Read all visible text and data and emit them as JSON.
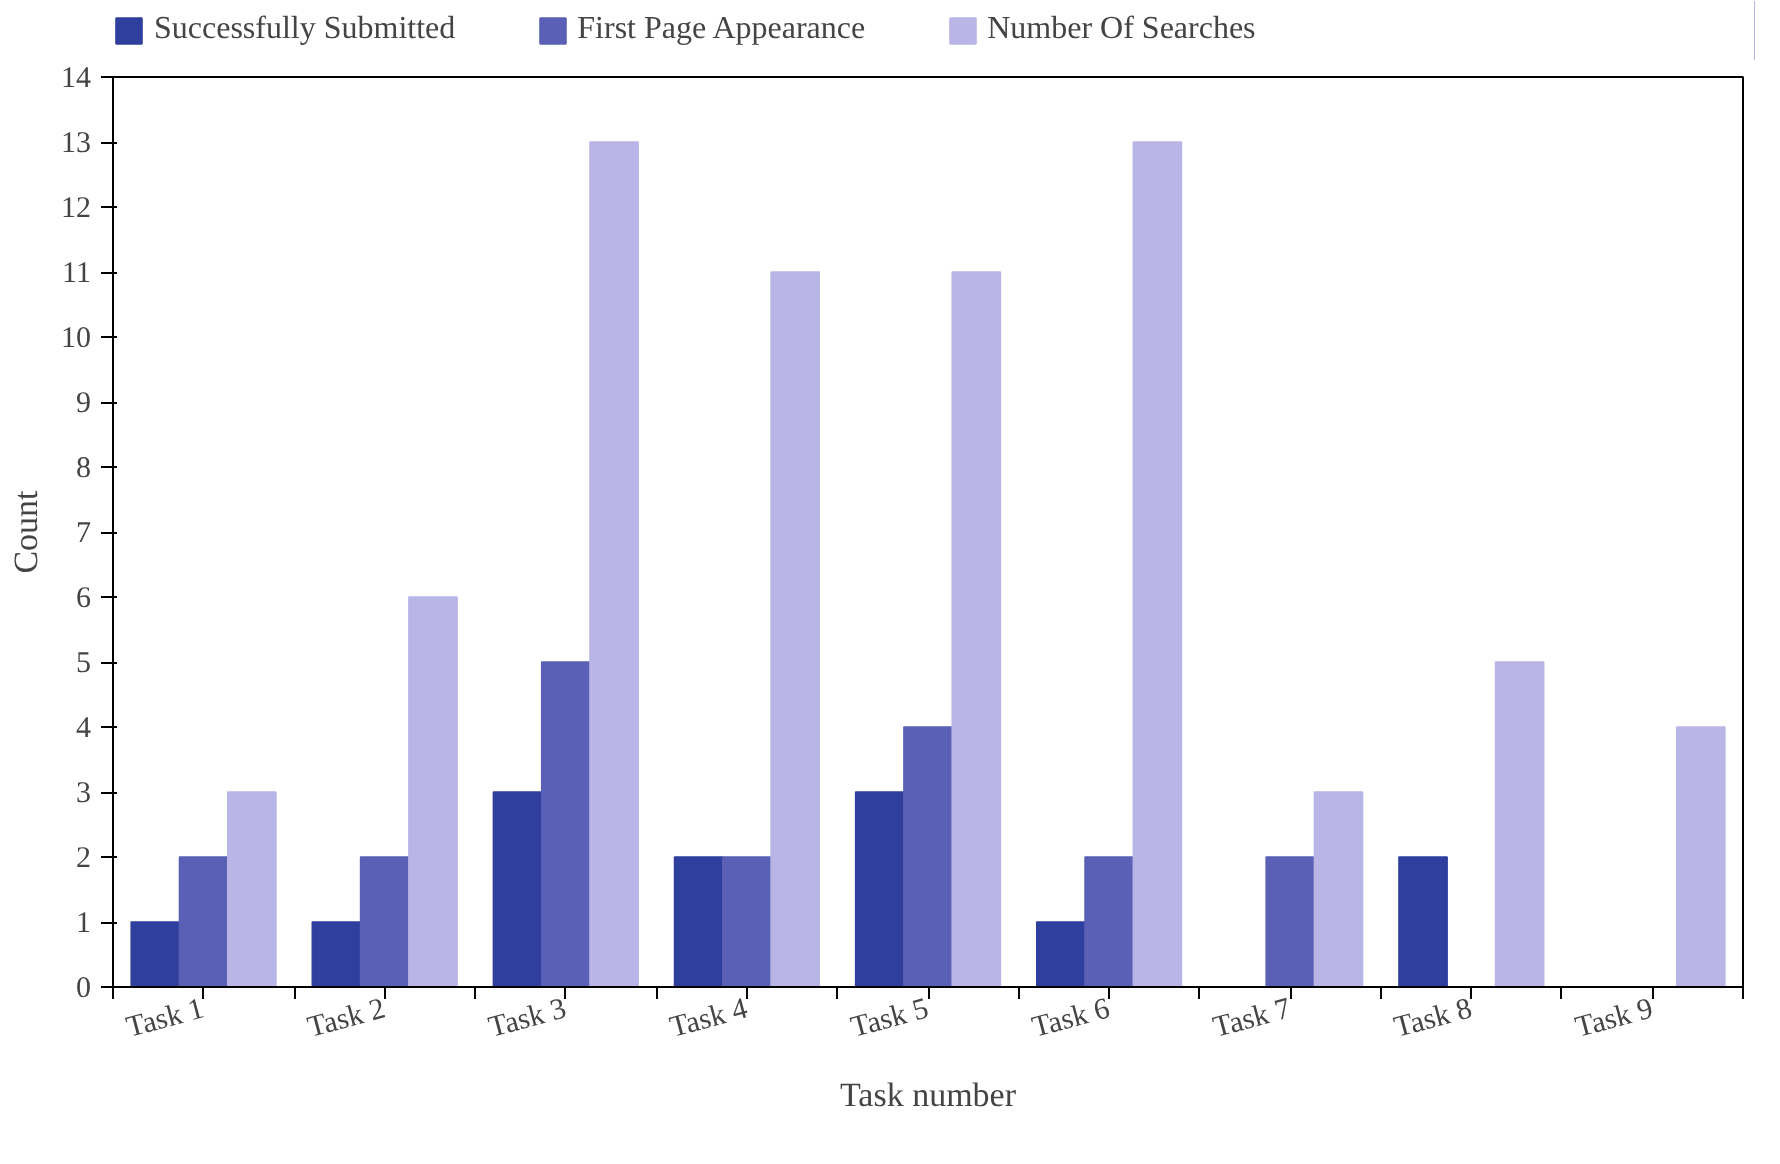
{
  "chart_data": {
    "type": "bar",
    "xlabel": "Task number",
    "ylabel": "Count",
    "categories": [
      "Task 1",
      "Task 2",
      "Task 3",
      "Task 4",
      "Task 5",
      "Task 6",
      "Task 7",
      "Task 8",
      "Task 9"
    ],
    "series": [
      {
        "name": "Successfully Submitted",
        "color": "#2e3f9e",
        "values": [
          1,
          1,
          3,
          2,
          3,
          1,
          0,
          2,
          0
        ]
      },
      {
        "name": "First Page Appearance",
        "color": "#5a60b6",
        "values": [
          2,
          2,
          5,
          2,
          4,
          2,
          2,
          0,
          0
        ]
      },
      {
        "name": "Number Of Searches",
        "color": "#b9b5e6",
        "values": [
          3,
          6,
          13,
          11,
          11,
          13,
          3,
          5,
          4
        ]
      }
    ],
    "ylim": [
      0,
      14
    ],
    "yticks": [
      0,
      1,
      2,
      3,
      4,
      5,
      6,
      7,
      8,
      9,
      10,
      11,
      12,
      13,
      14
    ],
    "grid": false,
    "legend": "top"
  }
}
